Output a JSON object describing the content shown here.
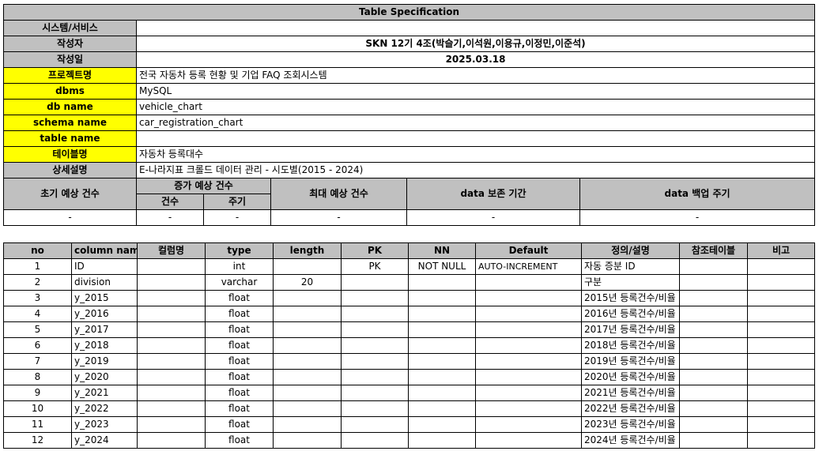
{
  "spec": {
    "title": "Table Specification",
    "rows": [
      {
        "label": "시스템/서비스",
        "value": "",
        "yellow": false
      },
      {
        "label": "작성자",
        "value": "SKN 12기 4조(박슬기,이석원,이용규,이정민,이준석)",
        "yellow": false,
        "center": true
      },
      {
        "label": "작성일",
        "value": "2025.03.18",
        "yellow": false,
        "center": true
      },
      {
        "label": "프로젝트명",
        "value": "전국 자동차 등록 현황 및 기업 FAQ 조회시스템",
        "yellow": true
      },
      {
        "label": "dbms",
        "value": "MySQL",
        "yellow": true
      },
      {
        "label": "db name",
        "value": "vehicle_chart",
        "yellow": true
      },
      {
        "label": "schema name",
        "value": "car_registration_chart",
        "yellow": true
      },
      {
        "label": "table name",
        "value": "",
        "yellow": true
      },
      {
        "label": "테이블명",
        "value": "자동차 등록대수",
        "yellow": true
      },
      {
        "label": "상세설명",
        "value": "E-나라지표 크롤드 데이터 관리 - 시도별(2015 - 2024)",
        "yellow": false
      }
    ],
    "estimate": {
      "initial_label": "초기 예상 건수",
      "increase_label": "증가 예상 건수",
      "count_label": "건수",
      "cycle_label": "주기",
      "max_label": "최대 예상 건수",
      "retention_label": "data 보존 기간",
      "backup_label": "data 백업 주기",
      "initial_value": "-",
      "count_value": "-",
      "cycle_value": "-",
      "max_value": "-",
      "retention_value": "-",
      "backup_value": "-"
    }
  },
  "columns": {
    "headers": [
      "no",
      "column name",
      "컬럼명",
      "type",
      "length",
      "PK",
      "NN",
      "Default",
      "정의/설명",
      "참조테이블",
      "비고"
    ],
    "rows": [
      {
        "no": "1",
        "name": "ID",
        "kname": "",
        "type": "int",
        "length": "",
        "pk": "PK",
        "nn": "NOT NULL",
        "default": "AUTO-INCREMENT",
        "desc": "자동 증분 ID",
        "ref": "",
        "note": ""
      },
      {
        "no": "2",
        "name": "division",
        "kname": "",
        "type": "varchar",
        "length": "20",
        "pk": "",
        "nn": "",
        "default": "",
        "desc": "구분",
        "ref": "",
        "note": ""
      },
      {
        "no": "3",
        "name": "y_2015",
        "kname": "",
        "type": "float",
        "length": "",
        "pk": "",
        "nn": "",
        "default": "",
        "desc": "2015년 등록건수/비율",
        "ref": "",
        "note": ""
      },
      {
        "no": "4",
        "name": "y_2016",
        "kname": "",
        "type": "float",
        "length": "",
        "pk": "",
        "nn": "",
        "default": "",
        "desc": "2016년 등록건수/비율",
        "ref": "",
        "note": ""
      },
      {
        "no": "5",
        "name": "y_2017",
        "kname": "",
        "type": "float",
        "length": "",
        "pk": "",
        "nn": "",
        "default": "",
        "desc": "2017년 등록건수/비율",
        "ref": "",
        "note": ""
      },
      {
        "no": "6",
        "name": "y_2018",
        "kname": "",
        "type": "float",
        "length": "",
        "pk": "",
        "nn": "",
        "default": "",
        "desc": "2018년 등록건수/비율",
        "ref": "",
        "note": ""
      },
      {
        "no": "7",
        "name": "y_2019",
        "kname": "",
        "type": "float",
        "length": "",
        "pk": "",
        "nn": "",
        "default": "",
        "desc": "2019년 등록건수/비율",
        "ref": "",
        "note": ""
      },
      {
        "no": "8",
        "name": "y_2020",
        "kname": "",
        "type": "float",
        "length": "",
        "pk": "",
        "nn": "",
        "default": "",
        "desc": "2020년 등록건수/비율",
        "ref": "",
        "note": ""
      },
      {
        "no": "9",
        "name": "y_2021",
        "kname": "",
        "type": "float",
        "length": "",
        "pk": "",
        "nn": "",
        "default": "",
        "desc": "2021년 등록건수/비율",
        "ref": "",
        "note": ""
      },
      {
        "no": "10",
        "name": "y_2022",
        "kname": "",
        "type": "float",
        "length": "",
        "pk": "",
        "nn": "",
        "default": "",
        "desc": "2022년 등록건수/비율",
        "ref": "",
        "note": ""
      },
      {
        "no": "11",
        "name": "y_2023",
        "kname": "",
        "type": "float",
        "length": "",
        "pk": "",
        "nn": "",
        "default": "",
        "desc": "2023년 등록건수/비율",
        "ref": "",
        "note": ""
      },
      {
        "no": "12",
        "name": "y_2024",
        "kname": "",
        "type": "float",
        "length": "",
        "pk": "",
        "nn": "",
        "default": "",
        "desc": "2024년 등록건수/비율",
        "ref": "",
        "note": ""
      }
    ]
  },
  "colors": {
    "header_gray": "#c0c0c0",
    "label_yellow": "#ffff00"
  }
}
